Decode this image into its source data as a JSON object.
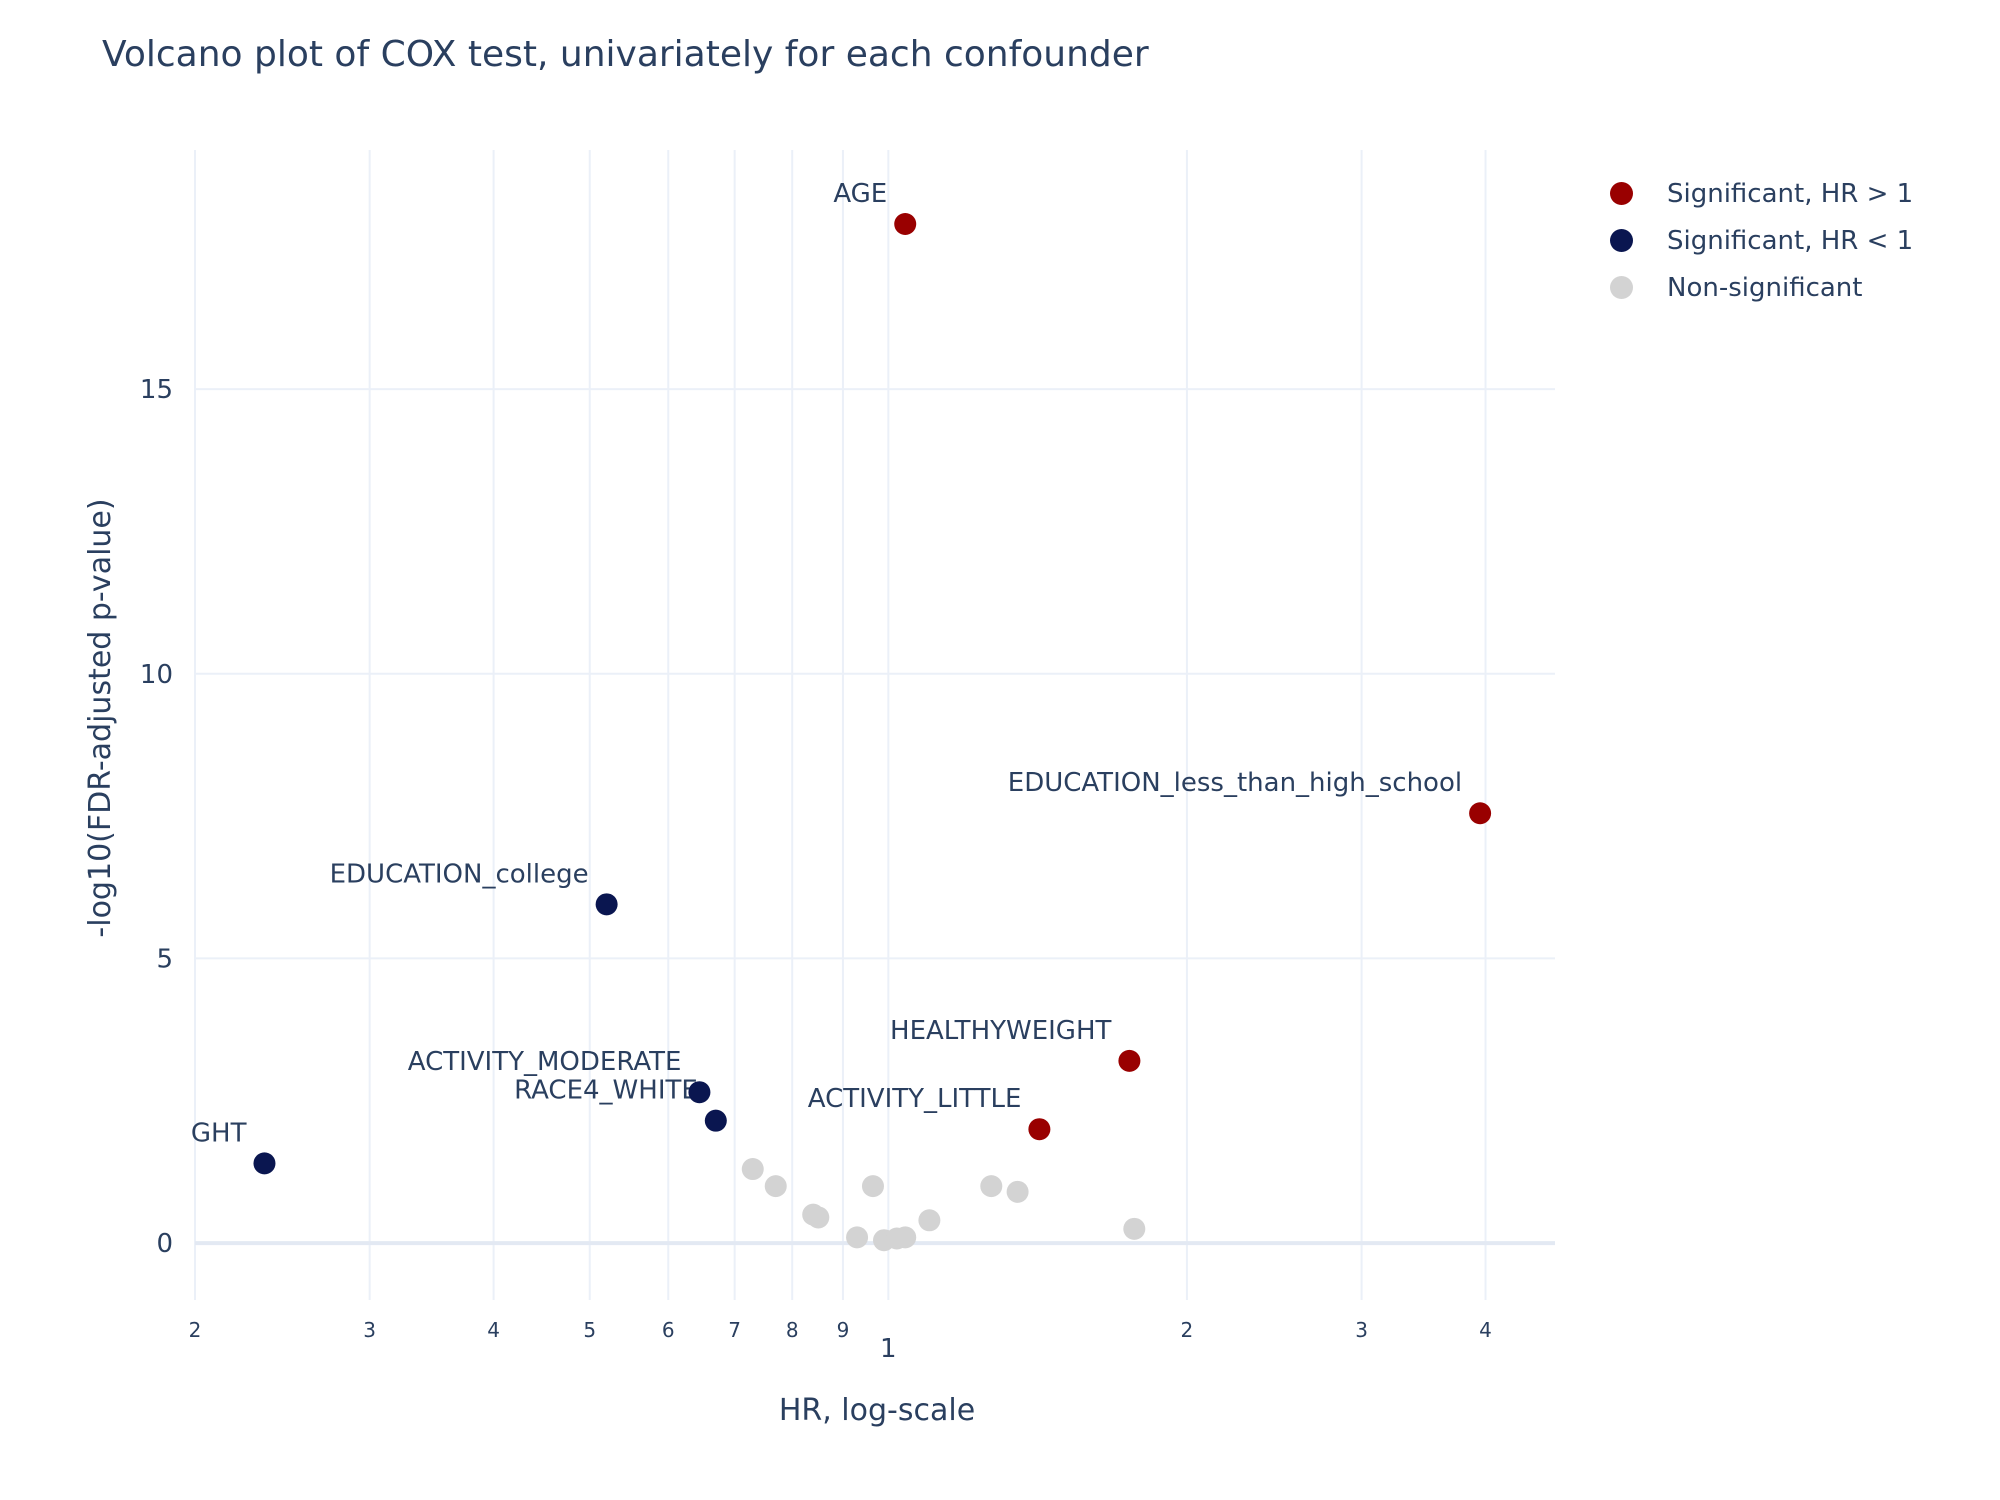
{
  "chart_data": {
    "type": "scatter",
    "title": "Volcano plot of COX test, univariately for each confounder",
    "xlabel": "HR, log-scale",
    "ylabel": "-log10(FDR-adjusted p-value)",
    "x_scale": "log",
    "xlim": [
      0.2,
      4.7
    ],
    "ylim": [
      -1.0,
      19.2
    ],
    "grid": true,
    "legend_position": "top-right",
    "x_major_ticks": [
      {
        "value": 1,
        "label": "1"
      }
    ],
    "x_minor_ticks": [
      {
        "value": 0.2,
        "label": "2"
      },
      {
        "value": 0.3,
        "label": "3"
      },
      {
        "value": 0.4,
        "label": "4"
      },
      {
        "value": 0.5,
        "label": "5"
      },
      {
        "value": 0.6,
        "label": "6"
      },
      {
        "value": 0.7,
        "label": "7"
      },
      {
        "value": 0.8,
        "label": "8"
      },
      {
        "value": 0.9,
        "label": "9"
      },
      {
        "value": 2,
        "label": "2"
      },
      {
        "value": 3,
        "label": "3"
      },
      {
        "value": 4,
        "label": "4"
      }
    ],
    "y_ticks": [
      {
        "value": 0,
        "label": "0"
      },
      {
        "value": 5,
        "label": "5"
      },
      {
        "value": 10,
        "label": "10"
      },
      {
        "value": 15,
        "label": "15"
      }
    ],
    "series": [
      {
        "name": "Significant, HR > 1",
        "color": "#990000",
        "points": [
          {
            "x": 1.04,
            "y": 17.9,
            "label": "AGE",
            "label_anchor": "end"
          },
          {
            "x": 3.95,
            "y": 7.55,
            "label": "EDUCATION_less_than_high_school",
            "label_anchor": "end"
          },
          {
            "x": 1.75,
            "y": 3.2,
            "label": "HEALTHYWEIGHT",
            "label_anchor": "end"
          },
          {
            "x": 1.42,
            "y": 2.0,
            "label": "ACTIVITY_LITTLE",
            "label_anchor": "end"
          }
        ]
      },
      {
        "name": "Significant, HR < 1",
        "color": "#0a1650",
        "points": [
          {
            "x": 0.52,
            "y": 5.95,
            "label": "EDUCATION_college",
            "label_anchor": "end"
          },
          {
            "x": 0.645,
            "y": 2.65,
            "label": "ACTIVITY_MODERATE",
            "label_anchor": "end"
          },
          {
            "x": 0.67,
            "y": 2.15,
            "label": "RACE4_WHITE",
            "label_anchor": "end"
          },
          {
            "x": 0.235,
            "y": 1.4,
            "label": "GHT",
            "label_anchor": "end"
          }
        ]
      },
      {
        "name": "Non-significant",
        "color": "#d3d3d3",
        "points": [
          {
            "x": 0.73,
            "y": 1.3
          },
          {
            "x": 0.77,
            "y": 1.0
          },
          {
            "x": 0.84,
            "y": 0.5
          },
          {
            "x": 0.85,
            "y": 0.45
          },
          {
            "x": 0.93,
            "y": 0.1
          },
          {
            "x": 0.965,
            "y": 1.0
          },
          {
            "x": 0.99,
            "y": 0.05
          },
          {
            "x": 1.02,
            "y": 0.08
          },
          {
            "x": 1.04,
            "y": 0.1
          },
          {
            "x": 1.1,
            "y": 0.4
          },
          {
            "x": 1.27,
            "y": 1.0
          },
          {
            "x": 1.35,
            "y": 0.9
          },
          {
            "x": 1.77,
            "y": 0.25
          }
        ]
      }
    ]
  }
}
